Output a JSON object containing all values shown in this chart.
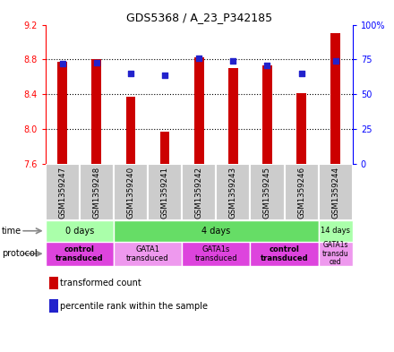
{
  "title": "GDS5368 / A_23_P342185",
  "samples": [
    "GSM1359247",
    "GSM1359248",
    "GSM1359240",
    "GSM1359241",
    "GSM1359242",
    "GSM1359243",
    "GSM1359245",
    "GSM1359246",
    "GSM1359244"
  ],
  "bar_values": [
    8.77,
    8.8,
    8.37,
    7.97,
    8.83,
    8.7,
    8.73,
    8.41,
    9.1
  ],
  "percentile_values": [
    72,
    73,
    65,
    64,
    76,
    74,
    71,
    65,
    74
  ],
  "bar_base": 7.6,
  "ylim": [
    7.6,
    9.2
  ],
  "y2lim": [
    0,
    100
  ],
  "yticks": [
    7.6,
    8.0,
    8.4,
    8.8,
    9.2
  ],
  "y2ticks": [
    0,
    25,
    50,
    75,
    100
  ],
  "bar_color": "#cc0000",
  "dot_color": "#2222cc",
  "sample_box_color": "#cccccc",
  "time_groups": [
    {
      "label": "0 days",
      "start": 0,
      "end": 2,
      "color": "#aaffaa"
    },
    {
      "label": "4 days",
      "start": 2,
      "end": 8,
      "color": "#66dd66"
    },
    {
      "label": "14 days",
      "start": 8,
      "end": 9,
      "color": "#aaffaa"
    }
  ],
  "protocol_groups": [
    {
      "label": "control\ntransduced",
      "start": 0,
      "end": 2,
      "color": "#dd44dd",
      "bold": true
    },
    {
      "label": "GATA1\ntransduced",
      "start": 2,
      "end": 4,
      "color": "#ee99ee",
      "bold": false
    },
    {
      "label": "GATA1s\ntransduced",
      "start": 4,
      "end": 6,
      "color": "#dd44dd",
      "bold": false
    },
    {
      "label": "control\ntransduced",
      "start": 6,
      "end": 8,
      "color": "#dd44dd",
      "bold": true
    },
    {
      "label": "GATA1s\ntransdu\nced",
      "start": 8,
      "end": 9,
      "color": "#ee99ee",
      "bold": false
    }
  ],
  "legend_items": [
    {
      "color": "#cc0000",
      "label": "transformed count"
    },
    {
      "color": "#2222cc",
      "label": "percentile rank within the sample"
    }
  ]
}
